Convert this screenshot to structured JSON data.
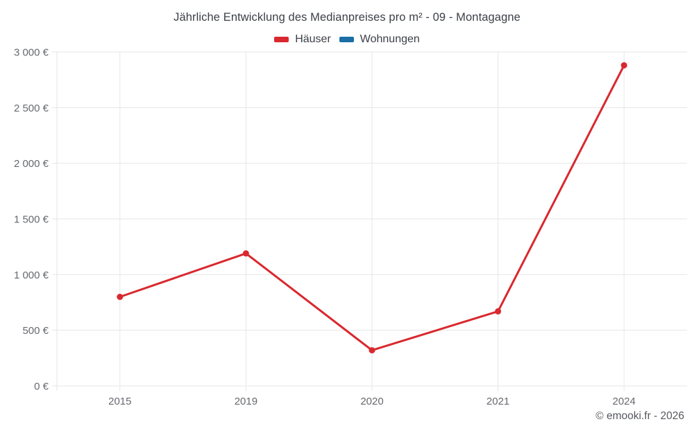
{
  "header": {
    "title": "Jährliche Entwicklung des Medianpreises pro m² - 09 - Montagagne"
  },
  "legend": {
    "items": [
      {
        "label": "Häuser",
        "color": "#d9282e"
      },
      {
        "label": "Wohnungen",
        "color": "#1a6fa6"
      }
    ]
  },
  "footer": {
    "copyright": "© emooki.fr - 2026"
  },
  "chart_data": {
    "type": "line",
    "title": "Jährliche Entwicklung des Medianpreises pro m² - 09 - Montagagne",
    "xlabel": "",
    "ylabel": "",
    "categories": [
      "2015",
      "2019",
      "2020",
      "2021",
      "2024"
    ],
    "series": [
      {
        "name": "Häuser",
        "color": "#d9282e",
        "values": [
          800,
          1190,
          320,
          670,
          2880
        ]
      },
      {
        "name": "Wohnungen",
        "color": "#1a6fa6",
        "values": [
          null,
          null,
          null,
          null,
          null
        ]
      }
    ],
    "ylim": [
      0,
      3000
    ],
    "ytick_step": 500,
    "ytick_labels": [
      "0 €",
      "500 €",
      "1 000 €",
      "1 500 €",
      "2 000 €",
      "2 500 €",
      "3 000 €"
    ],
    "currency": "€",
    "grid": true,
    "grid_color": "#e6e6e6",
    "legend_position": "top"
  }
}
